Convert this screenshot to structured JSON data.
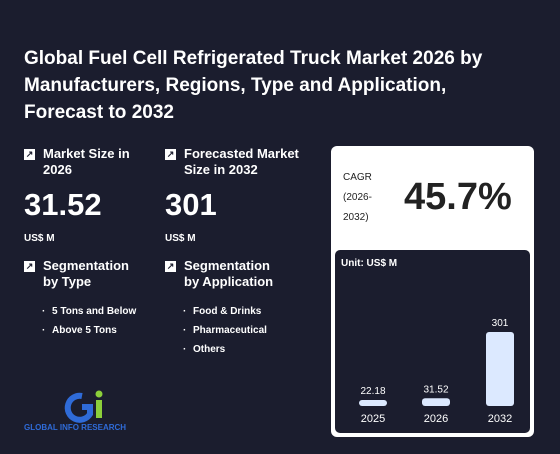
{
  "title": "Global Fuel Cell Refrigerated Truck Market 2026 by Manufacturers, Regions, Type and Application, Forecast to 2032",
  "market_size": {
    "label": "Market Size in 2026",
    "value": "31.52",
    "unit": "US$ M"
  },
  "forecast_size": {
    "label": "Forecasted Market Size in 2032",
    "value": "301",
    "unit": "US$ M"
  },
  "seg_type": {
    "label": "Segmentation by Type",
    "items": [
      "5 Tons and Below",
      "Above 5 Tons"
    ]
  },
  "seg_app": {
    "label": "Segmentation by Application",
    "items": [
      "Food & Drinks",
      "Pharmaceutical",
      "Others"
    ]
  },
  "cagr": {
    "label": "CAGR (2026-2032)",
    "value": "45.7%"
  },
  "logo_text": "GLOBAL INFO RESEARCH",
  "chart_data": {
    "type": "bar",
    "unit_label": "Unit: US$ M",
    "categories": [
      "2025",
      "2026",
      "2032"
    ],
    "values": [
      22.18,
      31.52,
      301
    ],
    "value_labels": [
      "22.18",
      "31.52",
      "301"
    ],
    "colors": {
      "bar": "#dce9ff",
      "label": "#ffffff"
    }
  }
}
